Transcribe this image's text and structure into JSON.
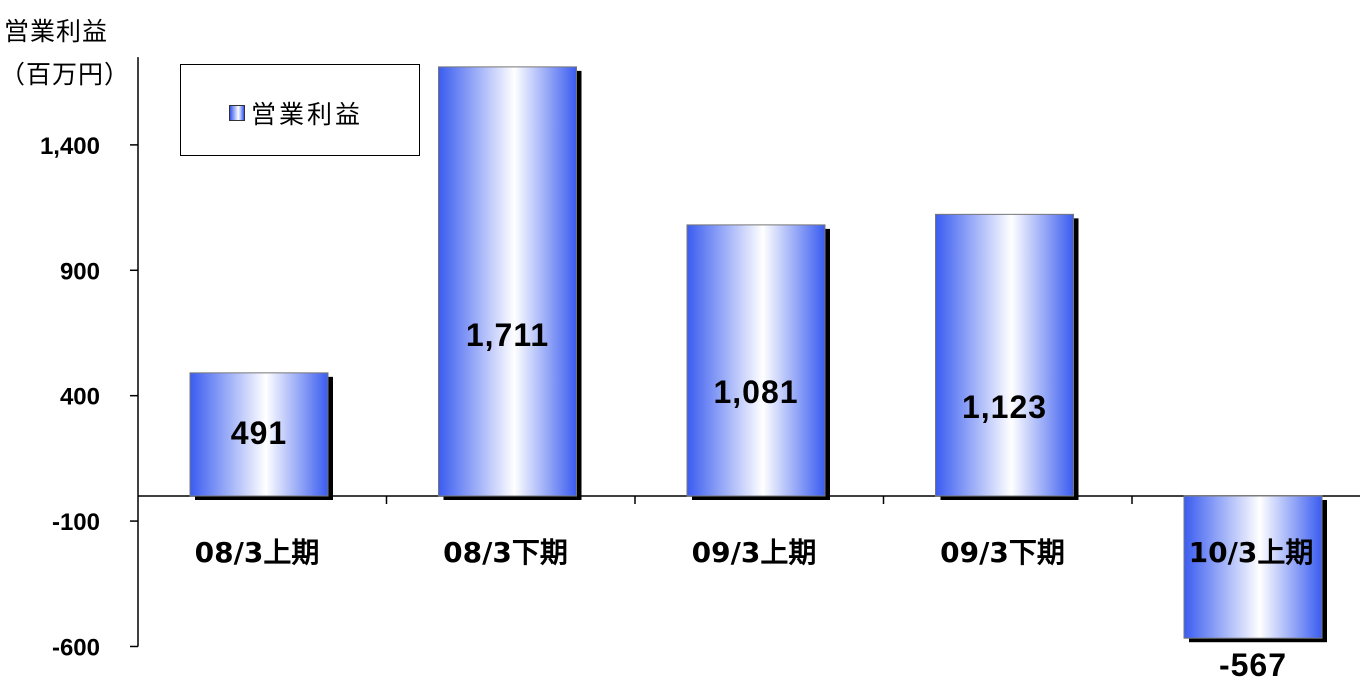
{
  "chart_data": {
    "type": "bar",
    "ylabel_line1": "営業利益",
    "ylabel_line2": "（百万円）",
    "legend": "営業利益",
    "legend_position": "top-left",
    "categories": [
      "08/3上期",
      "08/3下期",
      "09/3上期",
      "09/3下期",
      "10/3上期"
    ],
    "series": [
      {
        "name": "営業利益",
        "values": [
          491,
          1711,
          1081,
          1123,
          -567
        ]
      }
    ],
    "value_labels": [
      "491",
      "1,711",
      "1,081",
      "1,123",
      "-567"
    ],
    "y_ticks": [
      -600,
      -100,
      400,
      900,
      1400
    ],
    "y_tick_labels": [
      "-600",
      "-100",
      "400",
      "900",
      "1,400"
    ],
    "ylim": [
      -600,
      1750
    ],
    "grid": false,
    "colors": {
      "bar_edge": "#3355ee",
      "bar_center": "#ffffff",
      "shadow": "#000000"
    }
  }
}
